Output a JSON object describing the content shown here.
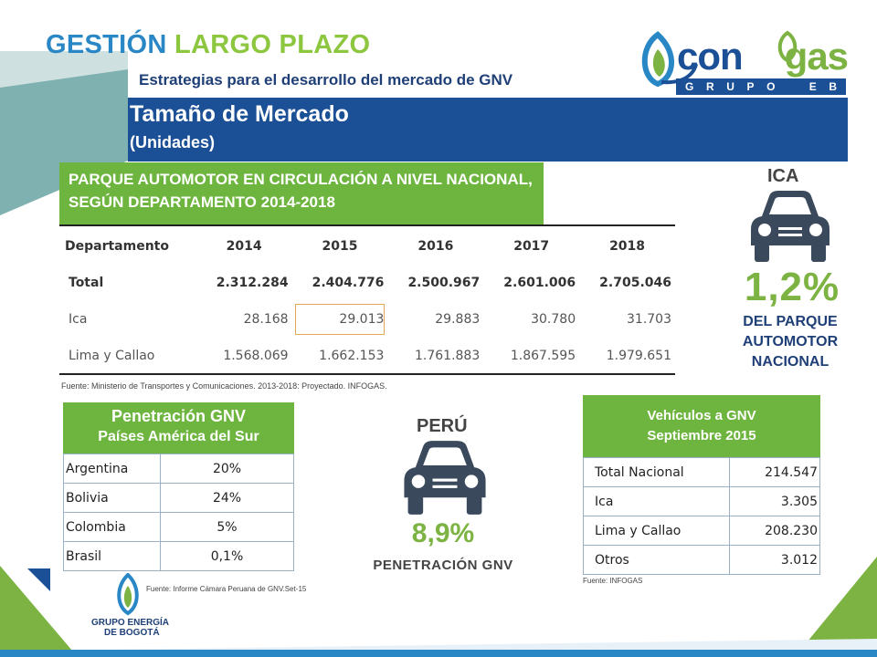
{
  "header": {
    "title_part1": "GESTIÓN",
    "title_part2": "LARGO PLAZO",
    "subtitle": "Estrategias para el desarrollo del mercado de GNV",
    "band_title": "Tamaño de Mercado",
    "band_subtitle": "(Unidades)"
  },
  "logo": {
    "text_part1": "con",
    "text_part2": "gas",
    "strip": [
      "G",
      "R",
      "U",
      "P",
      "O",
      "E",
      "B"
    ]
  },
  "parque": {
    "title": "PARQUE AUTOMOTOR EN CIRCULACIÓN A NIVEL NACIONAL, SEGÚN DEPARTAMENTO 2014-2018",
    "columns": [
      "Departamento",
      "2014",
      "2015",
      "2016",
      "2017",
      "2018"
    ],
    "rows": [
      {
        "label": "Total",
        "values": [
          "2.312.284",
          "2.404.776",
          "2.500.967",
          "2.601.006",
          "2.705.046"
        ]
      },
      {
        "label": "Ica",
        "values": [
          "28.168",
          "29.013",
          "29.883",
          "30.780",
          "31.703"
        ]
      },
      {
        "label": "Lima y Callao",
        "values": [
          "1.568.069",
          "1.662.153",
          "1.761.883",
          "1.867.595",
          "1.979.651"
        ]
      }
    ],
    "source": "Fuente: Ministerio de Transportes y Comunicaciones. 2013-2018: Proyectado. INFOGAS."
  },
  "ica": {
    "title": "ICA",
    "percent": "1,2%",
    "desc_line1": "DEL PARQUE",
    "desc_line2": "AUTOMOTOR",
    "desc_line3": "NACIONAL",
    "icon": "car-icon"
  },
  "penetracion": {
    "title": "Penetración GNV",
    "subtitle": "Países América del Sur",
    "rows": [
      {
        "country": "Argentina",
        "value": "20%"
      },
      {
        "country": "Bolivia",
        "value": "24%"
      },
      {
        "country": "Colombia",
        "value": "5%"
      },
      {
        "country": "Brasil",
        "value": "0,1%"
      }
    ],
    "source": "Fuente: Informe Cámara Peruana de GNV.Set-15"
  },
  "peru": {
    "title": "PERÚ",
    "percent": "8,9%",
    "desc": "PENETRACIÓN GNV",
    "icon": "car-icon"
  },
  "vehiculos": {
    "title_line1": "Vehículos a GNV",
    "title_line2": "Septiembre 2015",
    "rows": [
      {
        "label": "Total Nacional",
        "value": "214.547"
      },
      {
        "label": "Ica",
        "value": "3.305"
      },
      {
        "label": "Lima y Callao",
        "value": "208.230"
      },
      {
        "label": "Otros",
        "value": "3.012"
      }
    ],
    "source": "Fuente: INFOGAS"
  },
  "footer_logo": {
    "line1": "GRUPO ENERGÍA",
    "line2": "DE BOGOTÁ"
  },
  "colors": {
    "blue": "#1b4f96",
    "green": "#6eb53f",
    "title_blue": "#2a87c6",
    "title_green": "#8dc63f"
  }
}
